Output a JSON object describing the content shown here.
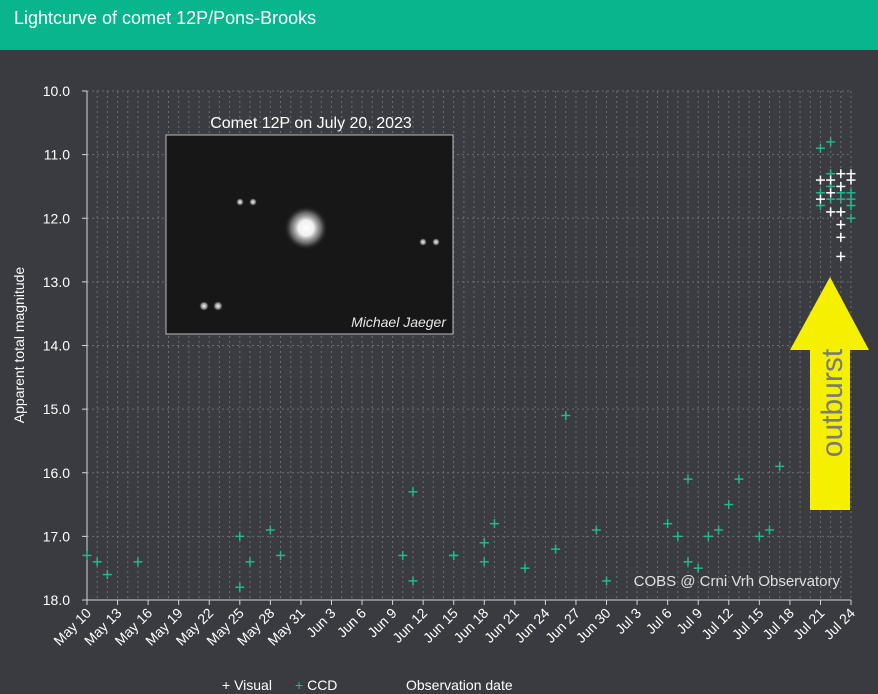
{
  "header": {
    "title": "Lightcurve of comet 12P/Pons-Brooks"
  },
  "inset": {
    "title": "Comet 12P on July 20, 2023",
    "credit": "Michael Jaeger"
  },
  "annotation": {
    "text": "outburst",
    "color": "#f5ef00"
  },
  "credit": "COBS @ Crni Vrh Observatory",
  "colors": {
    "visual": "#ffffff",
    "ccd": "#22b890",
    "header": "#08b58c",
    "background": "#393b40"
  },
  "chart_data": {
    "type": "scatter",
    "title": "Lightcurve of comet 12P/Pons-Brooks",
    "xlabel": "Observation date",
    "ylabel": "Apparent total magnitude",
    "ylim": [
      10.0,
      18.0
    ],
    "y_inverted": true,
    "xlim": [
      "2023-05-10",
      "2023-07-24"
    ],
    "grid": true,
    "legend": "bottom",
    "y_ticks": [
      "10.0",
      "11.0",
      "12.0",
      "13.0",
      "14.0",
      "15.0",
      "16.0",
      "17.0",
      "18.0"
    ],
    "x_ticks": [
      "May 10",
      "May 13",
      "May 16",
      "May 19",
      "May 22",
      "May 25",
      "May 28",
      "May 31",
      "Jun 3",
      "Jun 6",
      "Jun 9",
      "Jun 12",
      "Jun 15",
      "Jun 18",
      "Jun 21",
      "Jun 24",
      "Jun 27",
      "Jun 30",
      "Jul 3",
      "Jul 6",
      "Jul 9",
      "Jul 12",
      "Jul 15",
      "Jul 18",
      "Jul 21",
      "Jul 24"
    ],
    "series": [
      {
        "name": "CCD",
        "points": [
          {
            "x": "2023-05-10",
            "y": 17.3
          },
          {
            "x": "2023-05-11",
            "y": 17.4
          },
          {
            "x": "2023-05-12",
            "y": 17.6
          },
          {
            "x": "2023-05-15",
            "y": 17.4
          },
          {
            "x": "2023-05-25",
            "y": 17.0
          },
          {
            "x": "2023-05-25",
            "y": 17.8
          },
          {
            "x": "2023-05-26",
            "y": 17.4
          },
          {
            "x": "2023-05-28",
            "y": 16.9
          },
          {
            "x": "2023-05-29",
            "y": 17.3
          },
          {
            "x": "2023-06-10",
            "y": 17.3
          },
          {
            "x": "2023-06-11",
            "y": 16.3
          },
          {
            "x": "2023-06-11",
            "y": 17.7
          },
          {
            "x": "2023-06-15",
            "y": 17.3
          },
          {
            "x": "2023-06-15",
            "y": 17.3
          },
          {
            "x": "2023-06-18",
            "y": 17.1
          },
          {
            "x": "2023-06-18",
            "y": 17.4
          },
          {
            "x": "2023-06-18",
            "y": 17.1
          },
          {
            "x": "2023-06-19",
            "y": 16.8
          },
          {
            "x": "2023-06-22",
            "y": 17.5
          },
          {
            "x": "2023-06-25",
            "y": 17.2
          },
          {
            "x": "2023-06-26",
            "y": 15.1
          },
          {
            "x": "2023-06-29",
            "y": 16.9
          },
          {
            "x": "2023-06-30",
            "y": 17.7
          },
          {
            "x": "2023-07-06",
            "y": 16.8
          },
          {
            "x": "2023-07-07",
            "y": 17.0
          },
          {
            "x": "2023-07-08",
            "y": 16.1
          },
          {
            "x": "2023-07-08",
            "y": 17.4
          },
          {
            "x": "2023-07-09",
            "y": 17.5
          },
          {
            "x": "2023-07-10",
            "y": 17.0
          },
          {
            "x": "2023-07-11",
            "y": 16.9
          },
          {
            "x": "2023-07-12",
            "y": 16.5
          },
          {
            "x": "2023-07-13",
            "y": 16.1
          },
          {
            "x": "2023-07-15",
            "y": 17.0
          },
          {
            "x": "2023-07-16",
            "y": 16.9
          },
          {
            "x": "2023-07-17",
            "y": 15.9
          },
          {
            "x": "2023-07-21",
            "y": 10.9
          },
          {
            "x": "2023-07-21",
            "y": 11.6
          },
          {
            "x": "2023-07-21",
            "y": 11.8
          },
          {
            "x": "2023-07-22",
            "y": 10.8
          },
          {
            "x": "2023-07-22",
            "y": 11.3
          },
          {
            "x": "2023-07-22",
            "y": 11.5
          },
          {
            "x": "2023-07-22",
            "y": 11.7
          },
          {
            "x": "2023-07-22",
            "y": 11.9
          },
          {
            "x": "2023-07-23",
            "y": 11.5
          },
          {
            "x": "2023-07-23",
            "y": 11.7
          },
          {
            "x": "2023-07-23",
            "y": 11.9
          },
          {
            "x": "2023-07-23",
            "y": 11.6
          },
          {
            "x": "2023-07-24",
            "y": 11.6
          },
          {
            "x": "2023-07-24",
            "y": 11.8
          },
          {
            "x": "2023-07-24",
            "y": 12.0
          },
          {
            "x": "2023-07-24",
            "y": 11.7
          }
        ]
      },
      {
        "name": "Visual",
        "points": [
          {
            "x": "2023-07-21",
            "y": 11.4
          },
          {
            "x": "2023-07-21",
            "y": 11.7
          },
          {
            "x": "2023-07-22",
            "y": 11.4
          },
          {
            "x": "2023-07-22",
            "y": 11.6
          },
          {
            "x": "2023-07-22",
            "y": 11.9
          },
          {
            "x": "2023-07-23",
            "y": 11.3
          },
          {
            "x": "2023-07-23",
            "y": 11.5
          },
          {
            "x": "2023-07-23",
            "y": 11.9
          },
          {
            "x": "2023-07-23",
            "y": 12.1
          },
          {
            "x": "2023-07-23",
            "y": 12.3
          },
          {
            "x": "2023-07-23",
            "y": 12.6
          },
          {
            "x": "2023-07-24",
            "y": 11.3
          },
          {
            "x": "2023-07-24",
            "y": 11.4
          }
        ]
      }
    ]
  }
}
